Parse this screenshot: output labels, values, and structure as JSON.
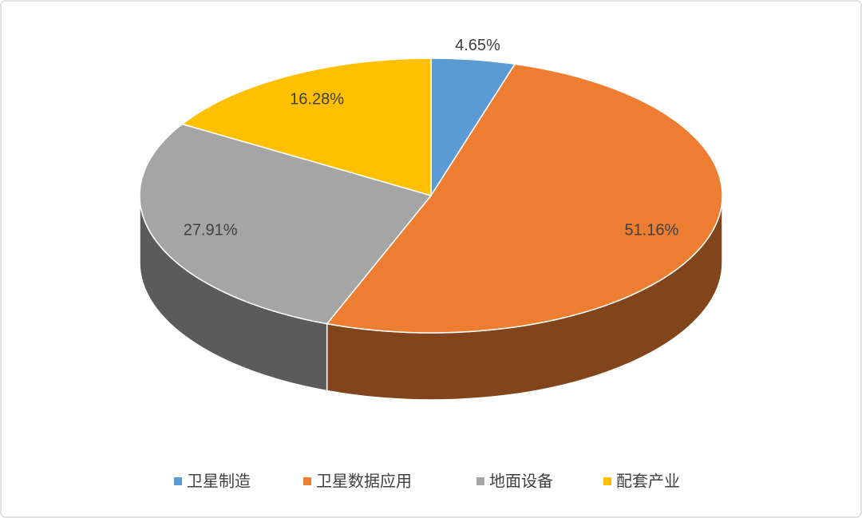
{
  "chart_data": {
    "type": "pie3d",
    "categories": [
      "卫星制造",
      "卫星数据应用",
      "地面设备",
      "配套产业"
    ],
    "values": [
      4.65,
      51.16,
      27.91,
      16.28
    ],
    "value_labels": [
      "4.65%",
      "51.16%",
      "27.91%",
      "16.28%"
    ],
    "colors": [
      "#5b9bd5",
      "#ed7d31",
      "#a5a5a5",
      "#ffc000"
    ],
    "legend": "bottom"
  }
}
